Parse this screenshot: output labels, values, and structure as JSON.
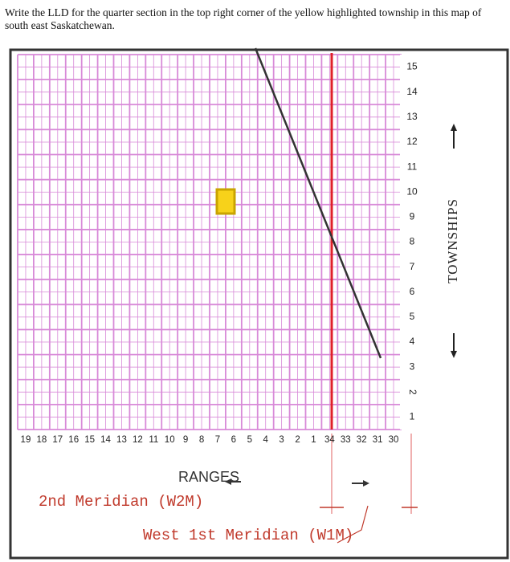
{
  "question": "Write the LLD for the quarter section in the top right corner of the yellow highlighted township in this map of south east Saskatchewan.",
  "townships": [
    "15",
    "14",
    "13",
    "12",
    "11",
    "10",
    "9",
    "8",
    "7",
    "6",
    "5",
    "4",
    "3",
    "2",
    "1"
  ],
  "ranges": [
    "19",
    "18",
    "17",
    "16",
    "15",
    "14",
    "13",
    "12",
    "11",
    "10",
    "9",
    "8",
    "7",
    "6",
    "5",
    "4",
    "3",
    "2",
    "1",
    "34",
    "33",
    "32",
    "31",
    "30"
  ],
  "ranges_label": "RANGES",
  "townships_label": "TOWNSHIPS",
  "w2m_label": "2nd Meridian (W2M)",
  "w1m_label": "West 1st Meridian (W1M)"
}
